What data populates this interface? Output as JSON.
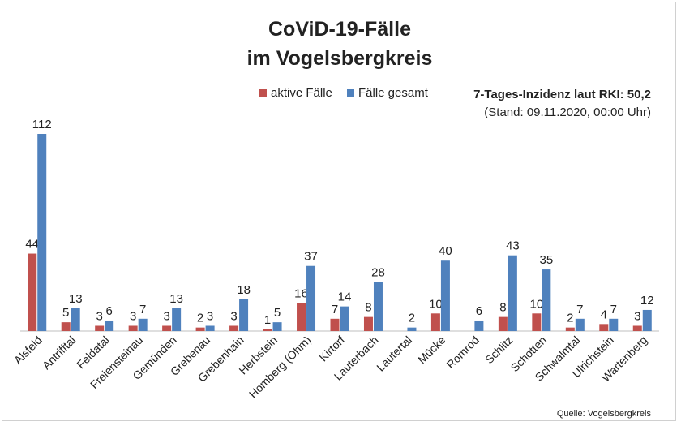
{
  "colors": {
    "active": "#c0504d",
    "total": "#4f81bd",
    "axis": "#bfbfbf",
    "text": "#222222"
  },
  "chart_data": {
    "type": "bar",
    "title": "CoViD-19-Fälle",
    "subtitle": "im Vogelsbergkreis",
    "legend_position": "top-center",
    "grid": false,
    "ylim": [
      0,
      120
    ],
    "categories": [
      "Alsfeld",
      "Antrifftal",
      "Feldatal",
      "Freiensteinau",
      "Gemünden",
      "Grebenau",
      "Grebenhain",
      "Herbstein",
      "Homberg (Ohm)",
      "Kirtorf",
      "Lauterbach",
      "Lautertal",
      "Mücke",
      "Romrod",
      "Schlitz",
      "Schotten",
      "Schwalmtal",
      "Ulrichstein",
      "Wartenberg"
    ],
    "series": [
      {
        "name": "aktive Fälle",
        "color_key": "active",
        "values": [
          44,
          5,
          3,
          3,
          3,
          2,
          3,
          1,
          16,
          7,
          8,
          0,
          10,
          0,
          8,
          10,
          2,
          4,
          3
        ],
        "labels": [
          "44",
          "5",
          "3",
          "3",
          "3",
          "2",
          "3",
          "1",
          "16",
          "7",
          "8",
          "",
          "10",
          "",
          "8",
          "10",
          "2",
          "4",
          "3"
        ]
      },
      {
        "name": "Fälle gesamt",
        "color_key": "total",
        "values": [
          112,
          13,
          6,
          7,
          13,
          3,
          18,
          5,
          37,
          14,
          28,
          2,
          40,
          6,
          43,
          35,
          7,
          7,
          12
        ],
        "labels": [
          "112",
          "13",
          "6",
          "7",
          "13",
          "3",
          "18",
          "5",
          "37",
          "14",
          "28",
          "2",
          "40",
          "6",
          "43",
          "35",
          "7",
          "7",
          "12"
        ]
      }
    ],
    "annotation": {
      "line1": "7-Tages-Inzidenz laut RKI: 50,2",
      "line2": "(Stand: 09.11.2020, 00:00 Uhr)"
    },
    "source": "Quelle: Vogelsbergkreis"
  }
}
